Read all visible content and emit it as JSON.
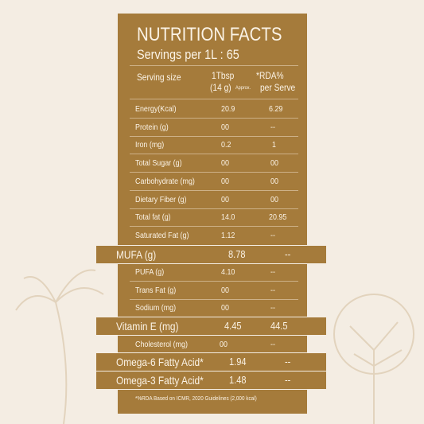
{
  "header": {
    "title": "NUTRITION FACTS",
    "servings": "Servings per 1L : 65"
  },
  "columns": {
    "label": "Serving size",
    "amount": "1Tbsp",
    "amount_sub": "(14 g)",
    "amount_note": "Approx.",
    "rda": "*RDA%",
    "rda_sub": "per Serve"
  },
  "rows": [
    [
      "Energy(Kcal)",
      "20.9",
      "6.29"
    ],
    [
      "Protein (g)",
      "00",
      "--"
    ],
    [
      "Iron (mg)",
      "0.2",
      "1"
    ],
    [
      "Total Sugar (g)",
      "00",
      "00"
    ],
    [
      "Carbohydrate (mg)",
      "00",
      "00"
    ],
    [
      "Dietary Fiber (g)",
      "00",
      "00"
    ],
    [
      "Total fat (g)",
      "14.0",
      "20.95"
    ],
    [
      "Saturated Fat (g)",
      "1.12",
      "--"
    ],
    [
      "MUFA (g)",
      "8.78",
      "--"
    ],
    [
      "PUFA (g)",
      "4.10",
      "--"
    ],
    [
      "Trans Fat (g)",
      "00",
      "--"
    ],
    [
      "Sodium (mg)",
      "00",
      "--"
    ],
    [
      "Vitamin E (mg)",
      "4.45",
      "44.5"
    ],
    [
      "Cholesterol (mg)",
      "00",
      "--"
    ],
    [
      "Omega-6 Fatty Acid*",
      "1.94",
      "--"
    ],
    [
      "Omega-3 Fatty Acid*",
      "1.48",
      "--"
    ]
  ],
  "footnote": "*%RDA Based on ICMR, 2020 Guidelines (2,000 kcal)"
}
